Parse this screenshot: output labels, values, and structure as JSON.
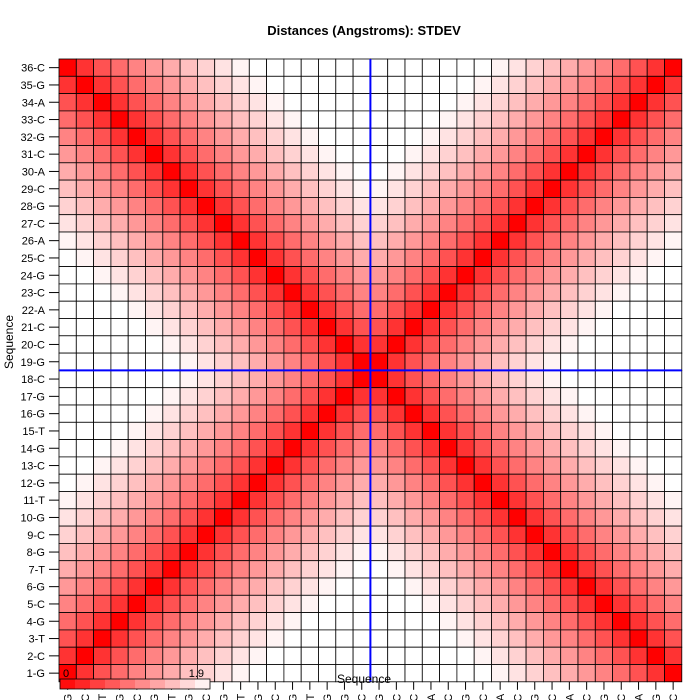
{
  "chart_data": {
    "type": "heatmap",
    "title": "Distances (Angstroms):  STDEV",
    "xlabel": "Sequence",
    "ylabel": "Sequence",
    "labels": [
      "1-G",
      "2-C",
      "3-T",
      "4-G",
      "5-C",
      "6-G",
      "7-T",
      "8-G",
      "9-C",
      "10-G",
      "11-T",
      "12-G",
      "13-C",
      "14-G",
      "15-T",
      "16-G",
      "17-G",
      "18-C",
      "19-G",
      "20-C",
      "21-C",
      "22-A",
      "23-C",
      "24-G",
      "25-C",
      "26-A",
      "27-C",
      "28-G",
      "29-C",
      "30-A",
      "31-C",
      "32-G",
      "33-C",
      "34-A",
      "35-G",
      "36-C"
    ],
    "value_rule": "value(i,j) = 0.38 * (min(|i-j|, |i+j-37|) ^ 0.68), i,j = 1..36 (diagonal and anti-diagonal are lowest)",
    "color_scale": {
      "min": 0,
      "max": 1.9,
      "low_color": "#ff0000",
      "high_color": "#ffffff"
    },
    "crosshair": {
      "x_between": [
        "18-C",
        "19-G"
      ],
      "y_between": [
        "18-C",
        "19-G"
      ],
      "color": "#0000ff"
    },
    "legend": {
      "min_label": "0",
      "max_label": "1.9",
      "position": "bottom-left"
    }
  }
}
